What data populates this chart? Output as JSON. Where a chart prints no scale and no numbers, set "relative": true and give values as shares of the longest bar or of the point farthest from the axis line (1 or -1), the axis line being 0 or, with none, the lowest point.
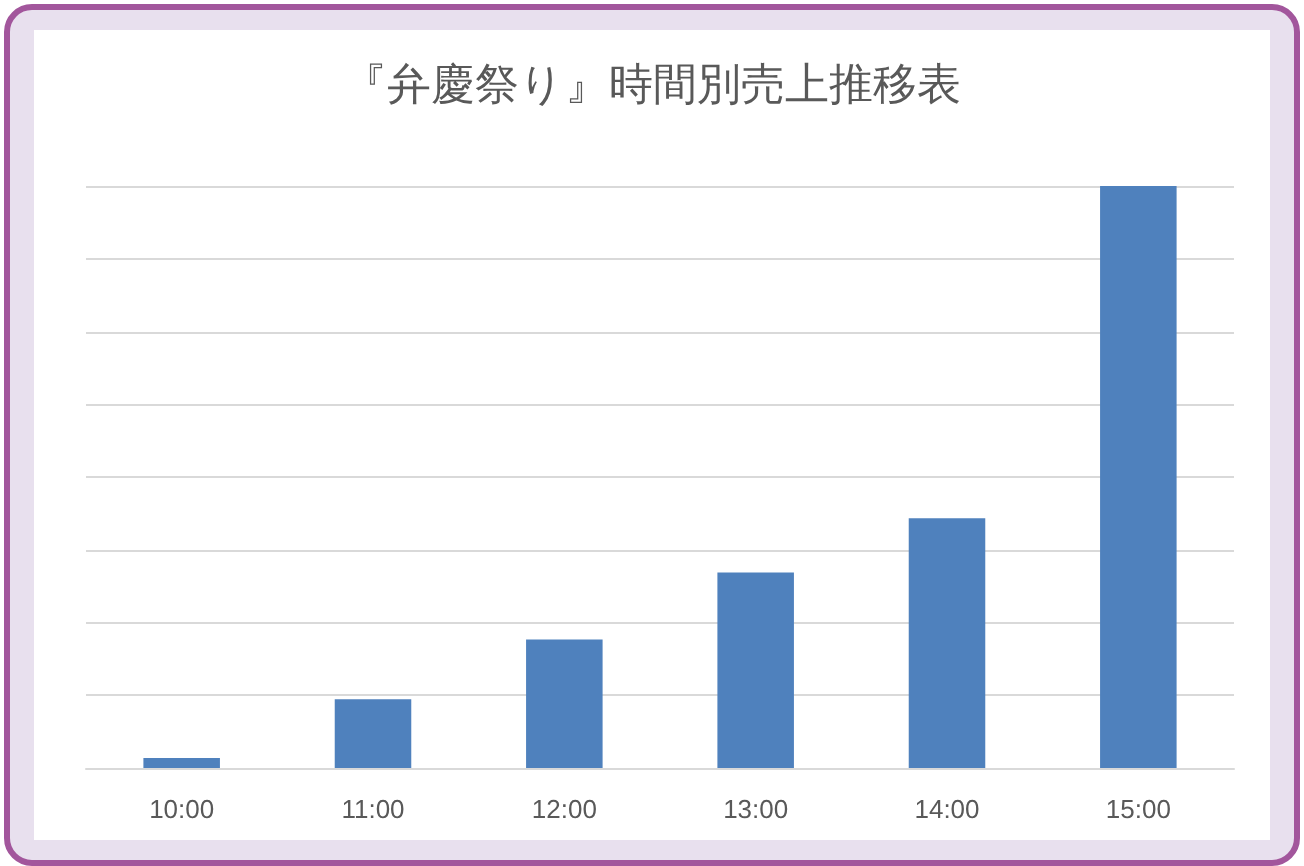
{
  "chart_data": {
    "type": "bar",
    "title": "『弁慶祭り』時間別売上推移表",
    "categories": [
      "10:00",
      "11:00",
      "12:00",
      "13:00",
      "14:00",
      "15:00"
    ],
    "values": [
      0.017,
      0.118,
      0.221,
      0.336,
      0.429,
      1
    ],
    "color": "#4f81bd",
    "relative": true,
    "grid": "y"
  }
}
